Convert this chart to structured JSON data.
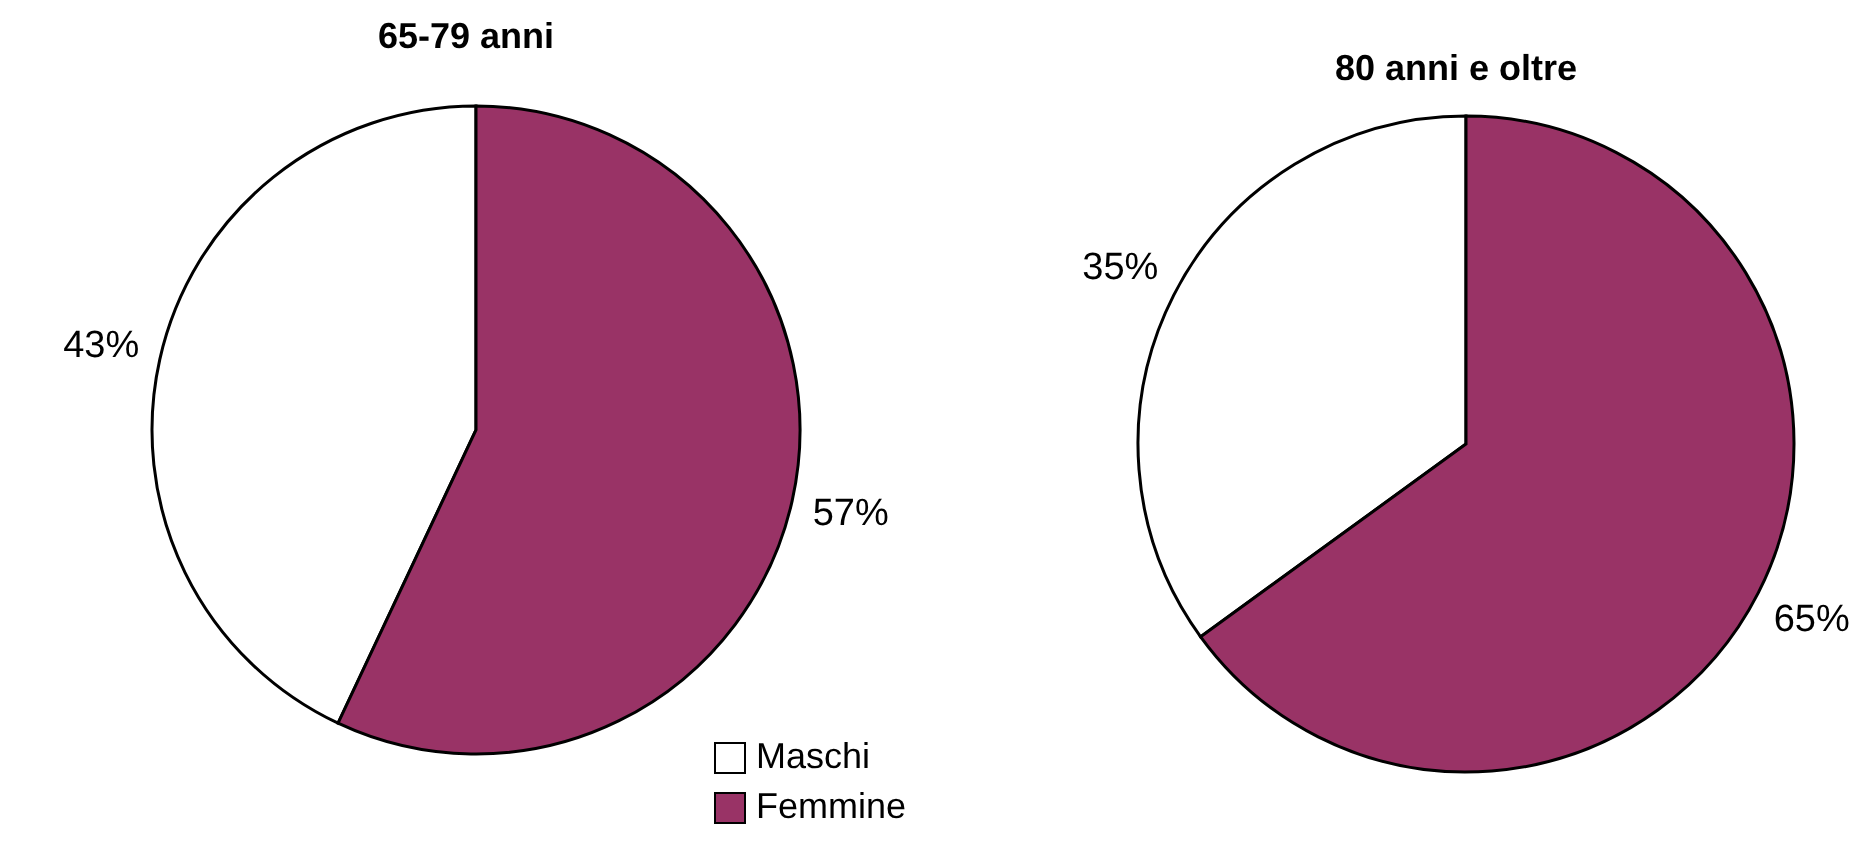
{
  "chart_data": [
    {
      "type": "pie",
      "title": "65-79 anni",
      "categories": [
        "Maschi",
        "Femmine"
      ],
      "values": [
        43,
        57
      ],
      "value_labels": [
        "43%",
        "57%"
      ],
      "colors": [
        "#ffffff",
        "#993366"
      ],
      "legend": "bottom right"
    },
    {
      "type": "pie",
      "title": "80 anni e oltre",
      "categories": [
        null,
        null
      ],
      "values": [
        35,
        65
      ],
      "value_labels": [
        "35%",
        "65%"
      ],
      "colors": [
        "#ffffff",
        "#993366"
      ]
    }
  ]
}
